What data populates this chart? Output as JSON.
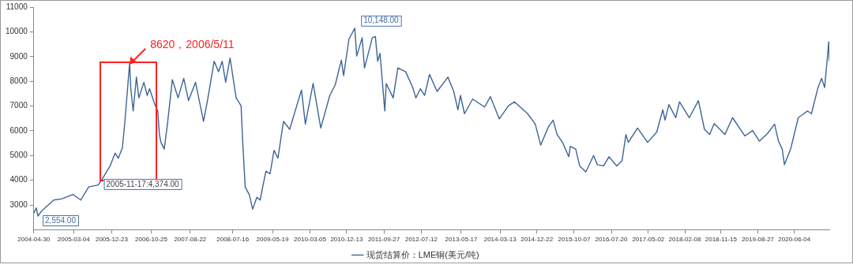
{
  "chart_data": {
    "type": "line",
    "legend": "bottom",
    "marker": "none",
    "xlim": [
      "2004-04-30",
      "2021-03-01"
    ],
    "xticks": [
      "2004-04-30",
      "2005-03-04",
      "2005-12-23",
      "2006-10-25",
      "2007-08-22",
      "2008-07-16",
      "2009-05-19",
      "2010-03-05",
      "2010-12-13",
      "2011-09-27",
      "2012-07-12",
      "2013-05-17",
      "2014-03-13",
      "2014-12-22",
      "2015-10-07",
      "2016-07-20",
      "2017-05-02",
      "2018-02-08",
      "2018-11-15",
      "2019-08-27",
      "2020-06-04"
    ],
    "ylim": [
      2000,
      11000
    ],
    "yticks": [
      3000,
      4000,
      5000,
      6000,
      7000,
      8000,
      9000,
      10000,
      11000
    ],
    "annotations": [
      {
        "text": "8620，2006/5/11",
        "x": "2006-05-11",
        "y": 8620
      },
      {
        "text": "2,554.00",
        "x": "2004-06-01",
        "y": 2554
      },
      {
        "text": "2005-11-17:4,374.00",
        "x": "2005-11-17",
        "y": 4374
      },
      {
        "text": "10,148.00",
        "x": "2011-02-14",
        "y": 10148
      }
    ],
    "series": [
      {
        "name": "现货结算价：LME铜(美元/吨)",
        "color": "#3d6496",
        "x": [
          "2004-04-30",
          "2004-05-19",
          "2004-06-01",
          "2004-07-03",
          "2004-10-01",
          "2004-12-04",
          "2005-02-26",
          "2005-04-28",
          "2005-06-28",
          "2005-09-10",
          "2005-10-11",
          "2005-11-17",
          "2005-12-11",
          "2006-01-18",
          "2006-02-12",
          "2006-03-16",
          "2006-04-04",
          "2006-05-11",
          "2006-05-19",
          "2006-06-07",
          "2006-07-02",
          "2006-07-21",
          "2006-08-29",
          "2006-09-23",
          "2006-10-12",
          "2006-11-25",
          "2006-12-14",
          "2006-12-27",
          "2007-01-08",
          "2007-02-02",
          "2007-02-27",
          "2007-04-06",
          "2007-05-20",
          "2007-07-03",
          "2007-08-09",
          "2007-10-02",
          "2007-12-03",
          "2008-01-06",
          "2008-02-23",
          "2008-03-28",
          "2008-04-25",
          "2008-05-22",
          "2008-06-25",
          "2008-08-11",
          "2008-09-18",
          "2008-10-01",
          "2008-10-20",
          "2008-11-21",
          "2008-12-17",
          "2009-01-18",
          "2009-02-12",
          "2009-03-29",
          "2009-04-30",
          "2009-05-31",
          "2009-06-30",
          "2009-08-12",
          "2009-09-29",
          "2009-12-29",
          "2010-01-28",
          "2010-03-29",
          "2010-05-27",
          "2010-08-05",
          "2010-09-16",
          "2010-11-02",
          "2010-11-20",
          "2010-12-31",
          "2011-02-14",
          "2011-03-01",
          "2011-04-12",
          "2011-04-30",
          "2011-05-30",
          "2011-06-29",
          "2011-07-23",
          "2011-08-10",
          "2011-08-28",
          "2011-10-04",
          "2011-10-15",
          "2011-12-08",
          "2012-01-13",
          "2012-03-13",
          "2012-05-07",
          "2012-05-31",
          "2012-07-06",
          "2012-08-07",
          "2012-09-14",
          "2012-11-11",
          "2013-02-03",
          "2013-03-20",
          "2013-04-21",
          "2013-05-11",
          "2013-06-11",
          "2013-08-13",
          "2013-11-14",
          "2013-12-28",
          "2014-03-07",
          "2014-05-17",
          "2014-07-03",
          "2014-10-12",
          "2014-12-10",
          "2015-01-21",
          "2015-03-22",
          "2015-04-27",
          "2015-05-28",
          "2015-07-09",
          "2015-08-26",
          "2015-09-07",
          "2015-10-19",
          "2015-11-18",
          "2016-01-05",
          "2016-03-05",
          "2016-04-03",
          "2016-05-21",
          "2016-07-02",
          "2016-08-31",
          "2016-10-11",
          "2016-11-10",
          "2016-11-28",
          "2017-02-08",
          "2017-04-26",
          "2017-07-06",
          "2017-08-22",
          "2017-09-08",
          "2017-10-08",
          "2017-11-30",
          "2017-12-29",
          "2018-03-15",
          "2018-05-24",
          "2018-07-10",
          "2018-08-19",
          "2018-09-23",
          "2018-12-15",
          "2019-02-12",
          "2019-05-18",
          "2019-07-17",
          "2019-09-08",
          "2019-11-11",
          "2020-01-03",
          "2020-02-02",
          "2020-03-02",
          "2020-03-19",
          "2020-05-06",
          "2020-07-04",
          "2020-09-14",
          "2020-10-14",
          "2020-12-01",
          "2020-12-31",
          "2021-01-24",
          "2021-02-25",
          "2021-03-01"
        ],
        "values": [
          2670,
          2880,
          2554,
          2780,
          3200,
          3250,
          3430,
          3200,
          3730,
          3810,
          4050,
          4374,
          4580,
          5100,
          4890,
          5320,
          6380,
          8760,
          7750,
          6800,
          8170,
          7330,
          7960,
          7430,
          7700,
          7010,
          6800,
          5850,
          5530,
          5260,
          6270,
          8070,
          7330,
          8120,
          7220,
          7960,
          6380,
          7330,
          8810,
          8390,
          8810,
          7960,
          8940,
          7330,
          7010,
          5530,
          3730,
          3410,
          2830,
          3310,
          3200,
          4370,
          4260,
          5210,
          4890,
          6380,
          6060,
          7650,
          6270,
          7910,
          6110,
          7430,
          7860,
          8860,
          8230,
          9710,
          10148,
          9020,
          9760,
          8540,
          9130,
          9760,
          9810,
          8810,
          9130,
          6800,
          7910,
          7330,
          8540,
          8390,
          7750,
          7330,
          7700,
          7430,
          8280,
          7590,
          8170,
          7590,
          6850,
          7430,
          6690,
          7280,
          6960,
          7380,
          6480,
          7010,
          7170,
          6690,
          6270,
          5420,
          6160,
          6430,
          5850,
          5530,
          4950,
          5370,
          5260,
          4580,
          4340,
          5000,
          4630,
          4580,
          4950,
          4580,
          4790,
          5850,
          5530,
          6110,
          5530,
          5950,
          6850,
          6430,
          7060,
          6530,
          7170,
          6530,
          7220,
          6060,
          5850,
          6290,
          5850,
          6530,
          5790,
          6010,
          5580,
          5900,
          6270,
          5580,
          5260,
          4630,
          5260,
          6530,
          6800,
          6690,
          7700,
          8120,
          7750,
          9600,
          8810
        ]
      }
    ]
  }
}
